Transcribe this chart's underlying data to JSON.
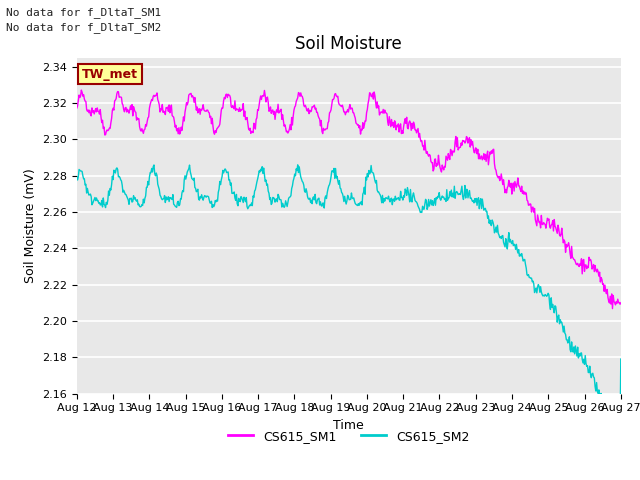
{
  "title": "Soil Moisture",
  "ylabel": "Soil Moisture (mV)",
  "xlabel": "Time",
  "annotation_line1": "No data for f_DltaT_SM1",
  "annotation_line2": "No data for f_DltaT_SM2",
  "legend_label1": "CS615_SM1",
  "legend_label2": "CS615_SM2",
  "tw_label": "TW_met",
  "color_sm1": "#FF00FF",
  "color_sm2": "#00CCCC",
  "tw_bg": "#FFFF99",
  "tw_border": "#990000",
  "tw_text": "#990000",
  "ylim": [
    2.16,
    2.345
  ],
  "yticks": [
    2.16,
    2.18,
    2.2,
    2.22,
    2.24,
    2.26,
    2.28,
    2.3,
    2.32,
    2.34
  ],
  "xtick_labels": [
    "Aug 12",
    "Aug 13",
    "Aug 14",
    "Aug 15",
    "Aug 16",
    "Aug 17",
    "Aug 18",
    "Aug 19",
    "Aug 20",
    "Aug 21",
    "Aug 22",
    "Aug 23",
    "Aug 24",
    "Aug 25",
    "Aug 26",
    "Aug 27"
  ],
  "bg_color": "#E8E8E8",
  "fig_bg": "#FFFFFF",
  "grid_color": "#FFFFFF",
  "font_size_title": 12,
  "font_size_ticks": 8,
  "font_size_labels": 9,
  "font_size_annot": 8
}
